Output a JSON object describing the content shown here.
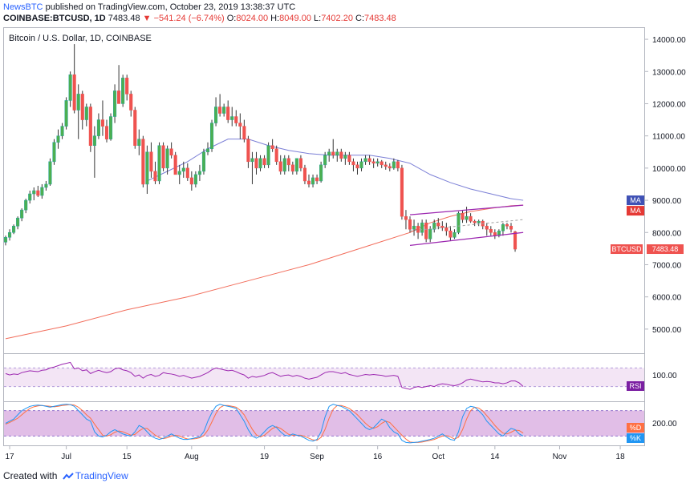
{
  "header": {
    "publisher": "NewsBTC",
    "published_text": "published on TradingView.com, October 23, 2019 13:38:37 UTC",
    "symbol": "COINBASE:BTCUSD, 1D",
    "last": "7483.48",
    "change": "−541.24 (−6.74%)",
    "o_label": "O:",
    "o": "8024.00",
    "h_label": "H:",
    "h": "8049.00",
    "l_label": "L:",
    "l": "7402.20",
    "c_label": "C:",
    "c": "7483.48"
  },
  "footer": {
    "created_with": "Created with",
    "brand": "TradingView"
  },
  "colors": {
    "up": "#26a69a",
    "up_fill": "#4caf50",
    "down": "#ef5350",
    "ma50": "#7b7fd6",
    "ma200": "#f26d5b",
    "channel": "#9c27b0",
    "rsi_band": "#f3e5f5",
    "stoch_band": "#e1bee7",
    "stoch_k": "#2196f3",
    "stoch_d": "#ff7043",
    "rsi_line": "#9c27b0"
  },
  "chart_data": {
    "type": "candlestick",
    "title": "Bitcoin / U.S. Dollar, 1D, COINBASE",
    "y_ticks": [
      "14000.00",
      "13000.00",
      "12000.00",
      "11000.00",
      "10000.00",
      "9000.00",
      "8000.00",
      "7000.00",
      "6000.00",
      "5000.00"
    ],
    "y_tick_values": [
      14000,
      13000,
      12000,
      11000,
      10000,
      9000,
      8000,
      7000,
      6000,
      5000
    ],
    "ylim": [
      4300,
      14300
    ],
    "x_ticks": [
      "17",
      "Jul",
      "15",
      "Aug",
      "19",
      "Sep",
      "16",
      "Oct",
      "14",
      "Nov",
      "18"
    ],
    "x_tick_days": [
      1,
      15,
      30,
      46,
      64,
      77,
      92,
      107,
      121,
      137,
      152
    ],
    "last_day": 128,
    "candles": [
      [
        7700,
        7900,
        7600,
        7850
      ],
      [
        7850,
        8100,
        7750,
        8000
      ],
      [
        8000,
        8250,
        7950,
        8200
      ],
      [
        8200,
        8500,
        8100,
        8450
      ],
      [
        8450,
        8750,
        8350,
        8700
      ],
      [
        8700,
        9050,
        8600,
        9000
      ],
      [
        9000,
        9300,
        8900,
        9200
      ],
      [
        9200,
        9400,
        9000,
        9300
      ],
      [
        9300,
        9450,
        9100,
        9150
      ],
      [
        9150,
        9500,
        9050,
        9400
      ],
      [
        9400,
        9600,
        9300,
        9500
      ],
      [
        9500,
        10300,
        9450,
        10200
      ],
      [
        10200,
        10900,
        10100,
        10800
      ],
      [
        10800,
        11200,
        10600,
        11000
      ],
      [
        11000,
        11400,
        10900,
        11300
      ],
      [
        11300,
        12200,
        11200,
        12100
      ],
      [
        12100,
        13000,
        11900,
        12900
      ],
      [
        12900,
        13850,
        11700,
        11800
      ],
      [
        11800,
        12600,
        10900,
        12300
      ],
      [
        12300,
        12400,
        11200,
        11500
      ],
      [
        11500,
        12000,
        11300,
        11900
      ],
      [
        11900,
        12000,
        10500,
        10700
      ],
      [
        10700,
        11300,
        9700,
        11000
      ],
      [
        11000,
        11700,
        10900,
        11500
      ],
      [
        11500,
        12100,
        11000,
        11300
      ],
      [
        11300,
        11500,
        10800,
        10900
      ],
      [
        10900,
        11700,
        10850,
        11600
      ],
      [
        11600,
        12600,
        11400,
        12400
      ],
      [
        12400,
        13200,
        12000,
        12000
      ],
      [
        12000,
        12900,
        11900,
        12800
      ],
      [
        12800,
        12900,
        12100,
        12300
      ],
      [
        12300,
        12400,
        11600,
        11800
      ],
      [
        11800,
        11900,
        10600,
        10700
      ],
      [
        10700,
        11200,
        10400,
        10900
      ],
      [
        10900,
        11000,
        9400,
        9500
      ],
      [
        9500,
        10700,
        9200,
        10500
      ],
      [
        10500,
        10800,
        9700,
        9900
      ],
      [
        9900,
        10200,
        9500,
        9600
      ],
      [
        9600,
        10800,
        9500,
        10700
      ],
      [
        10700,
        10800,
        9900,
        10000
      ],
      [
        10000,
        10700,
        9800,
        10600
      ],
      [
        10600,
        10800,
        10300,
        10400
      ],
      [
        10400,
        10500,
        9900,
        9800
      ],
      [
        9800,
        10100,
        9500,
        9900
      ],
      [
        9900,
        10200,
        9700,
        10000
      ],
      [
        10000,
        10150,
        9600,
        9700
      ],
      [
        9700,
        9900,
        9300,
        9500
      ],
      [
        9500,
        9900,
        9400,
        9800
      ],
      [
        9800,
        10100,
        9600,
        9900
      ],
      [
        9900,
        10600,
        9800,
        10500
      ],
      [
        10500,
        10800,
        10400,
        10600
      ],
      [
        10600,
        11500,
        10500,
        11400
      ],
      [
        11400,
        12200,
        11300,
        11900
      ],
      [
        11900,
        12300,
        11600,
        11700
      ],
      [
        11700,
        12000,
        11600,
        11900
      ],
      [
        11900,
        12100,
        11400,
        11500
      ],
      [
        11500,
        11900,
        11300,
        11600
      ],
      [
        11600,
        11800,
        11300,
        11400
      ],
      [
        11400,
        11700,
        10900,
        11300
      ],
      [
        11300,
        11500,
        10800,
        10900
      ],
      [
        10900,
        11000,
        10000,
        10200
      ],
      [
        10200,
        10500,
        9500,
        10300
      ],
      [
        10300,
        10500,
        9800,
        10000
      ],
      [
        10000,
        10400,
        9900,
        10300
      ],
      [
        10300,
        10400,
        10000,
        10100
      ],
      [
        10100,
        10800,
        10000,
        10700
      ],
      [
        10700,
        10900,
        10500,
        10600
      ],
      [
        10600,
        10700,
        10100,
        10200
      ],
      [
        10200,
        10400,
        9800,
        9900
      ],
      [
        9900,
        10400,
        9800,
        10300
      ],
      [
        10300,
        10400,
        9900,
        10100
      ],
      [
        10100,
        10200,
        9800,
        9900
      ],
      [
        9900,
        10300,
        9800,
        10300
      ],
      [
        10300,
        10400,
        9900,
        10000
      ],
      [
        10000,
        10100,
        9500,
        9600
      ],
      [
        9600,
        9800,
        9400,
        9500
      ],
      [
        9500,
        9800,
        9400,
        9700
      ],
      [
        9700,
        9800,
        9500,
        9600
      ],
      [
        9600,
        10200,
        9550,
        10100
      ],
      [
        10100,
        10500,
        10000,
        10400
      ],
      [
        10400,
        10600,
        10200,
        10500
      ],
      [
        10500,
        10900,
        10300,
        10400
      ],
      [
        10400,
        10600,
        10200,
        10500
      ],
      [
        10500,
        10600,
        10200,
        10300
      ],
      [
        10300,
        10500,
        10100,
        10400
      ],
      [
        10400,
        10500,
        10100,
        10200
      ],
      [
        10200,
        10300,
        9900,
        10100
      ],
      [
        10100,
        10200,
        9800,
        10000
      ],
      [
        10000,
        10300,
        9900,
        10200
      ],
      [
        10200,
        10400,
        10100,
        10300
      ],
      [
        10300,
        10400,
        10100,
        10200
      ],
      [
        10200,
        10300,
        10000,
        10150
      ],
      [
        10150,
        10300,
        10050,
        10200
      ],
      [
        10200,
        10250,
        10000,
        10100
      ],
      [
        10100,
        10200,
        9950,
        10050
      ],
      [
        10050,
        10150,
        9900,
        10000
      ],
      [
        10000,
        10300,
        9950,
        10200
      ],
      [
        10200,
        10250,
        9900,
        10000
      ],
      [
        10000,
        10100,
        8400,
        8500
      ],
      [
        8500,
        8700,
        8100,
        8400
      ],
      [
        8400,
        8500,
        8000,
        8100
      ],
      [
        8100,
        8400,
        7900,
        8200
      ],
      [
        8200,
        8300,
        7800,
        8000
      ],
      [
        8000,
        8400,
        7900,
        8300
      ],
      [
        8300,
        8400,
        7700,
        7800
      ],
      [
        7800,
        8200,
        7700,
        8100
      ],
      [
        8100,
        8400,
        8000,
        8300
      ],
      [
        8300,
        8450,
        8100,
        8200
      ],
      [
        8200,
        8350,
        8050,
        8150
      ],
      [
        8150,
        8300,
        7900,
        8050
      ],
      [
        8050,
        8200,
        7750,
        7850
      ],
      [
        7850,
        8100,
        7800,
        8000
      ],
      [
        8000,
        8650,
        7950,
        8600
      ],
      [
        8600,
        8700,
        8300,
        8400
      ],
      [
        8400,
        8800,
        8300,
        8500
      ],
      [
        8500,
        8600,
        8300,
        8350
      ],
      [
        8350,
        8400,
        8200,
        8300
      ],
      [
        8300,
        8400,
        8200,
        8350
      ],
      [
        8350,
        8400,
        8100,
        8200
      ],
      [
        8200,
        8300,
        7900,
        8100
      ],
      [
        8100,
        8200,
        7900,
        8000
      ],
      [
        8000,
        8100,
        7800,
        7900
      ],
      [
        7900,
        8100,
        7850,
        8050
      ],
      [
        8050,
        8300,
        7900,
        8250
      ],
      [
        8250,
        8300,
        8100,
        8200
      ],
      [
        8200,
        8300,
        8000,
        8100
      ],
      [
        8024,
        8049,
        7402,
        7483
      ]
    ],
    "ma50": {
      "name": "MA",
      "days": [
        35,
        40,
        45,
        50,
        55,
        60,
        65,
        70,
        75,
        80,
        85,
        90,
        95,
        100,
        105,
        110,
        115,
        120,
        125,
        128
      ],
      "values": [
        9600,
        9900,
        10200,
        10600,
        10900,
        10900,
        10700,
        10550,
        10450,
        10400,
        10400,
        10400,
        10300,
        10150,
        9800,
        9550,
        9350,
        9200,
        9050,
        9000
      ]
    },
    "ma200": {
      "name": "MA",
      "days": [
        0,
        15,
        30,
        45,
        60,
        75,
        90,
        100,
        105,
        110,
        115,
        120,
        125,
        128
      ],
      "values": [
        4700,
        5100,
        5600,
        6000,
        6500,
        7000,
        7600,
        8000,
        8300,
        8500,
        8650,
        8750,
        8830,
        8850
      ]
    },
    "channel": {
      "upper": [
        [
          100,
          8550
        ],
        [
          128,
          8850
        ]
      ],
      "lower": [
        [
          100,
          7600
        ],
        [
          128,
          8000
        ]
      ],
      "projection": [
        [
          100,
          8050
        ],
        [
          128,
          8400
        ]
      ]
    },
    "last_price_label": "BTCUSD",
    "last_price": "7483.48",
    "ma_tag1": "MA",
    "ma_tag2": "MA",
    "rsi": {
      "label": "RSI",
      "tick": "100.00",
      "ylim": [
        0,
        100
      ],
      "band": [
        30,
        70
      ],
      "values": [
        58,
        55,
        57,
        56,
        60,
        62,
        64,
        63,
        62,
        65,
        66,
        70,
        72,
        75,
        78,
        80,
        82,
        68,
        70,
        64,
        66,
        58,
        62,
        65,
        62,
        60,
        62,
        68,
        70,
        66,
        64,
        60,
        52,
        55,
        48,
        54,
        56,
        52,
        54,
        60,
        58,
        57,
        55,
        52,
        54,
        51,
        48,
        50,
        52,
        56,
        60,
        66,
        70,
        68,
        66,
        64,
        65,
        62,
        58,
        55,
        48,
        52,
        50,
        52,
        54,
        58,
        60,
        56,
        52,
        54,
        55,
        52,
        54,
        52,
        48,
        46,
        48,
        50,
        55,
        60,
        62,
        62,
        60,
        58,
        60,
        56,
        54,
        52,
        54,
        56,
        55,
        56,
        55,
        54,
        52,
        53,
        54,
        52,
        28,
        26,
        24,
        28,
        30,
        28,
        30,
        32,
        30,
        34,
        36,
        35,
        33,
        32,
        34,
        38,
        44,
        46,
        44,
        42,
        40,
        41,
        40,
        38,
        38,
        36,
        38,
        42,
        42,
        38,
        30
      ]
    },
    "stoch": {
      "k_label": "%K",
      "d_label": "%D",
      "tick": "200.00",
      "ylim": [
        0,
        100
      ],
      "band": [
        20,
        80
      ],
      "k": [
        50,
        55,
        60,
        70,
        80,
        85,
        90,
        92,
        93,
        92,
        90,
        88,
        90,
        92,
        94,
        95,
        94,
        90,
        80,
        70,
        60,
        55,
        30,
        20,
        18,
        22,
        30,
        35,
        30,
        25,
        22,
        20,
        30,
        45,
        40,
        30,
        20,
        15,
        12,
        15,
        20,
        25,
        20,
        15,
        12,
        12,
        14,
        16,
        18,
        30,
        55,
        75,
        90,
        95,
        92,
        90,
        88,
        85,
        70,
        55,
        35,
        20,
        15,
        20,
        30,
        40,
        45,
        40,
        30,
        22,
        20,
        25,
        22,
        20,
        15,
        10,
        8,
        12,
        30,
        65,
        90,
        95,
        92,
        90,
        85,
        80,
        70,
        60,
        50,
        40,
        35,
        40,
        50,
        60,
        55,
        40,
        30,
        25,
        10,
        5,
        4,
        5,
        6,
        8,
        10,
        12,
        15,
        20,
        25,
        18,
        12,
        10,
        30,
        65,
        85,
        90,
        88,
        80,
        70,
        55,
        45,
        35,
        25,
        20,
        30,
        38,
        35,
        25,
        20
      ],
      "d": [
        48,
        52,
        57,
        62,
        70,
        78,
        85,
        89,
        91,
        92,
        91,
        90,
        89,
        90,
        92,
        93,
        94,
        93,
        88,
        80,
        70,
        62,
        48,
        35,
        22,
        20,
        23,
        29,
        32,
        30,
        26,
        22,
        24,
        32,
        38,
        38,
        30,
        22,
        16,
        14,
        16,
        20,
        22,
        20,
        16,
        13,
        13,
        14,
        16,
        21,
        34,
        53,
        73,
        87,
        92,
        92,
        90,
        88,
        81,
        70,
        53,
        36,
        23,
        18,
        22,
        30,
        38,
        42,
        38,
        31,
        24,
        22,
        22,
        22,
        19,
        15,
        11,
        10,
        17,
        36,
        62,
        83,
        92,
        92,
        89,
        85,
        78,
        70,
        60,
        50,
        42,
        38,
        42,
        50,
        55,
        52,
        42,
        32,
        22,
        13,
        6,
        5,
        5,
        6,
        8,
        10,
        12,
        16,
        20,
        21,
        18,
        13,
        17,
        35,
        60,
        80,
        88,
        86,
        79,
        68,
        57,
        45,
        35,
        27,
        25,
        29,
        34,
        33,
        27
      ]
    }
  }
}
